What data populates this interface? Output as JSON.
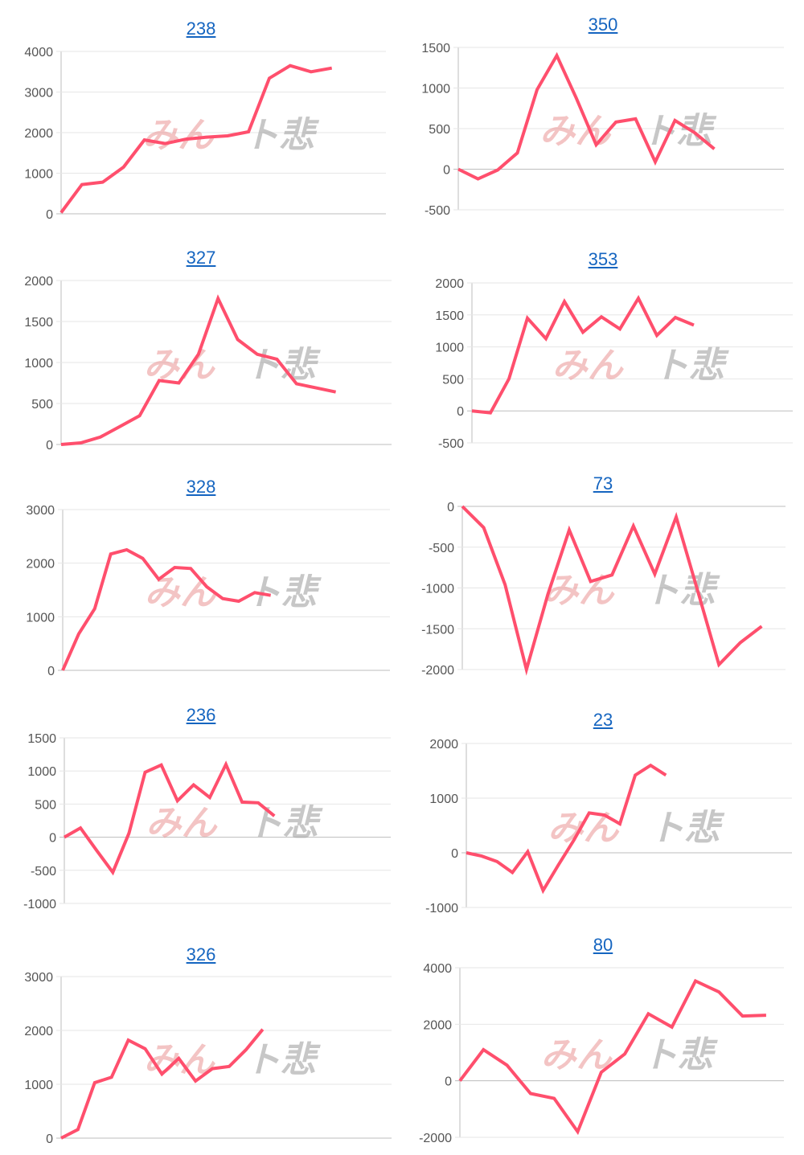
{
  "watermark": {
    "part1": "みん",
    "part2": "ト悲"
  },
  "colors": {
    "line": "#ff4f6d",
    "grid": "#e6e6e6",
    "axis": "#bdbdbd",
    "title": "#1565c0"
  },
  "chart_data": [
    {
      "type": "line",
      "title": "238",
      "yticks": [
        0,
        1000,
        2000,
        3000,
        4000
      ],
      "ylim": [
        0,
        4000
      ],
      "grid": true,
      "legend": "none",
      "values": [
        30,
        720,
        780,
        1150,
        1820,
        1730,
        1840,
        1890,
        1920,
        2020,
        3340,
        3650,
        3500,
        3590
      ]
    },
    {
      "type": "line",
      "title": "350",
      "yticks": [
        -500,
        0,
        500,
        1000,
        1500
      ],
      "ylim": [
        -500,
        1500
      ],
      "grid": true,
      "legend": "none",
      "values": [
        0,
        -120,
        -10,
        200,
        980,
        1400,
        870,
        300,
        580,
        620,
        90,
        600,
        450,
        250
      ]
    },
    {
      "type": "line",
      "title": "327",
      "yticks": [
        0,
        500,
        1000,
        1500,
        2000
      ],
      "ylim": [
        0,
        2000
      ],
      "grid": true,
      "legend": "none",
      "values": [
        0,
        20,
        90,
        220,
        350,
        780,
        750,
        1100,
        1780,
        1280,
        1100,
        1040,
        740,
        690,
        640
      ]
    },
    {
      "type": "line",
      "title": "353",
      "yticks": [
        -500,
        0,
        500,
        1000,
        1500,
        2000
      ],
      "ylim": [
        -500,
        2000
      ],
      "grid": true,
      "legend": "none",
      "values": [
        0,
        -30,
        500,
        1450,
        1130,
        1710,
        1230,
        1470,
        1280,
        1760,
        1180,
        1460,
        1340
      ]
    },
    {
      "type": "line",
      "title": "328",
      "yticks": [
        0,
        1000,
        2000,
        3000
      ],
      "ylim": [
        0,
        3000
      ],
      "grid": true,
      "legend": "none",
      "values": [
        0,
        680,
        1150,
        2170,
        2250,
        2090,
        1700,
        1920,
        1900,
        1560,
        1340,
        1290,
        1450,
        1400
      ]
    },
    {
      "type": "line",
      "title": "73",
      "yticks": [
        -2000,
        -1500,
        -1000,
        -500,
        0
      ],
      "ylim": [
        -2000,
        0
      ],
      "grid": true,
      "legend": "none",
      "values": [
        0,
        -260,
        -960,
        -2000,
        -1080,
        -290,
        -920,
        -840,
        -240,
        -830,
        -130,
        -1030,
        -1940,
        -1670,
        -1470
      ]
    },
    {
      "type": "line",
      "title": "236",
      "yticks": [
        -1000,
        -500,
        0,
        500,
        1000,
        1500
      ],
      "ylim": [
        -1000,
        1500
      ],
      "grid": true,
      "legend": "none",
      "values": [
        0,
        140,
        -200,
        -530,
        60,
        980,
        1090,
        550,
        790,
        600,
        1100,
        530,
        520,
        320
      ]
    },
    {
      "type": "line",
      "title": "23",
      "yticks": [
        -1000,
        0,
        1000,
        2000
      ],
      "ylim": [
        -1000,
        2000
      ],
      "grid": true,
      "legend": "none",
      "values": [
        0,
        -60,
        -160,
        -360,
        20,
        -690,
        -220,
        230,
        730,
        690,
        530,
        1420,
        1600,
        1420
      ]
    },
    {
      "type": "line",
      "title": "326",
      "yticks": [
        0,
        1000,
        2000,
        3000
      ],
      "ylim": [
        0,
        3000
      ],
      "grid": true,
      "legend": "none",
      "values": [
        0,
        160,
        1030,
        1130,
        1820,
        1660,
        1190,
        1480,
        1060,
        1290,
        1330,
        1640,
        2020
      ]
    },
    {
      "type": "line",
      "title": "80",
      "yticks": [
        -2000,
        0,
        2000,
        4000
      ],
      "ylim": [
        -2000,
        4000
      ],
      "grid": true,
      "legend": "none",
      "values": [
        0,
        1100,
        550,
        -450,
        -620,
        -1800,
        300,
        950,
        2370,
        1900,
        3530,
        3140,
        2290,
        2320
      ]
    }
  ]
}
